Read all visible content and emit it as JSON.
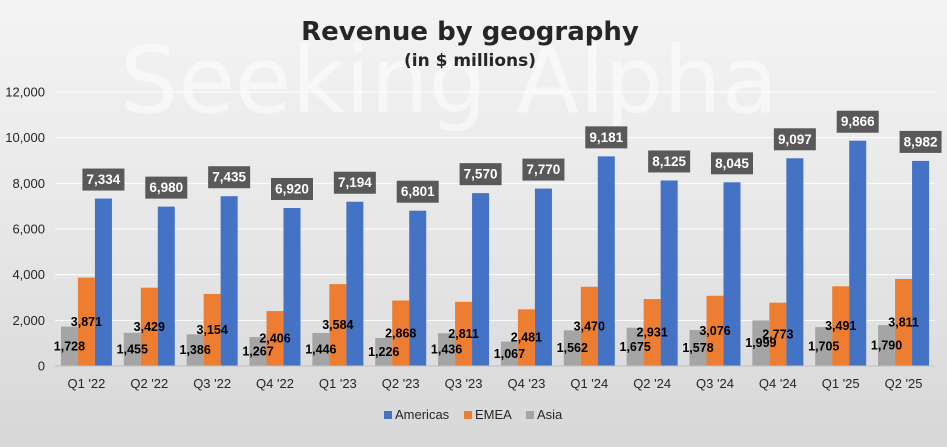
{
  "watermark": "Seeking Alpha",
  "chart_data": {
    "type": "bar",
    "title": "Revenue by geography",
    "subtitle": "(in $ millions)",
    "xlabel": "",
    "ylabel": "",
    "ylim": [
      0,
      12000
    ],
    "yticks": [
      0,
      2000,
      4000,
      6000,
      8000,
      10000,
      12000
    ],
    "ytick_labels": [
      "0",
      "2,000",
      "4,000",
      "6,000",
      "8,000",
      "10,000",
      "12,000"
    ],
    "grid": true,
    "legend_position": "bottom-center",
    "categories": [
      "Q1 '22",
      "Q2 '22",
      "Q3 '22",
      "Q4 '22",
      "Q1 '23",
      "Q2 '23",
      "Q3 '23",
      "Q4 '23",
      "Q1 '24",
      "Q2 '24",
      "Q3 '24",
      "Q4 '24",
      "Q1 '25",
      "Q2 '25"
    ],
    "series": [
      {
        "name": "Asia",
        "color": "#a5a5a5",
        "values": [
          1728,
          1455,
          1386,
          1267,
          1446,
          1226,
          1436,
          1067,
          1562,
          1675,
          1578,
          1999,
          1705,
          1790
        ]
      },
      {
        "name": "EMEA",
        "color": "#ed7d31",
        "values": [
          3871,
          3429,
          3154,
          2406,
          3584,
          2868,
          2811,
          2481,
          3470,
          2931,
          3076,
          2773,
          3491,
          3811
        ]
      },
      {
        "name": "Americas",
        "color": "#4472c4",
        "values": [
          7334,
          6980,
          7435,
          6920,
          7194,
          6801,
          7570,
          7770,
          9181,
          8125,
          8045,
          9097,
          9866,
          8982
        ]
      }
    ],
    "value_labels": {
      "Asia": [
        "1,728",
        "1,455",
        "1,386",
        "1,267",
        "1,446",
        "1,226",
        "1,436",
        "1,067",
        "1,562",
        "1,675",
        "1,578",
        "1,999",
        "1,705",
        "1,790"
      ],
      "EMEA": [
        "3,871",
        "3,429",
        "3,154",
        "2,406",
        "3,584",
        "2,868",
        "2,811",
        "2,481",
        "3,470",
        "2,931",
        "3,076",
        "2,773",
        "3,491",
        "3,811"
      ],
      "Americas": [
        "7,334",
        "6,980",
        "7,435",
        "6,920",
        "7,194",
        "6,801",
        "7,570",
        "7,770",
        "9,181",
        "8,125",
        "8,045",
        "9,097",
        "9,866",
        "8,982"
      ]
    },
    "legend": [
      "Americas",
      "EMEA",
      "Asia"
    ]
  }
}
